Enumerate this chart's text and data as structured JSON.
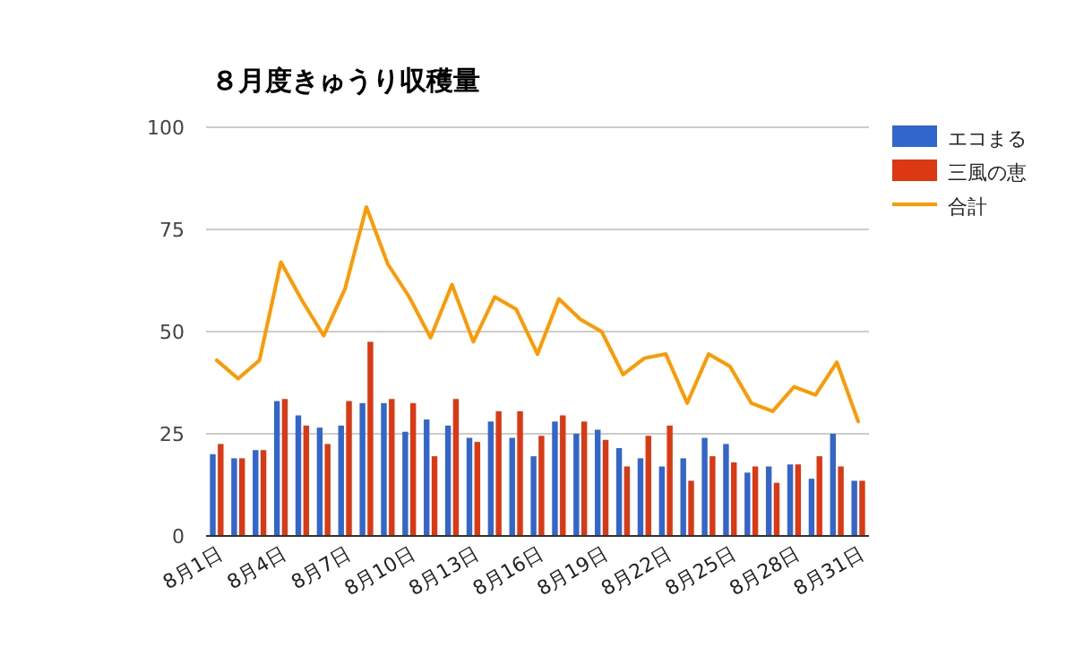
{
  "chart_data": {
    "type": "bar",
    "title": "８月度きゅうり収穫量",
    "categories": [
      "8月1日",
      null,
      null,
      "8月4日",
      null,
      null,
      "8月7日",
      null,
      null,
      "8月10日",
      null,
      null,
      "8月13日",
      null,
      null,
      "8月16日",
      null,
      null,
      "8月19日",
      null,
      null,
      "8月22日",
      null,
      null,
      "8月25日",
      null,
      null,
      "8月28日",
      null,
      null,
      "8月31日"
    ],
    "series": [
      {
        "name": "エコまる",
        "color": "#3366cc",
        "values": [
          20,
          19,
          21,
          33,
          29.5,
          26.5,
          27,
          32.5,
          32.5,
          25.5,
          28.5,
          27,
          24,
          28,
          24,
          19.5,
          28,
          25,
          26,
          21.5,
          19,
          17,
          19,
          24,
          22.5,
          15.5,
          17,
          17.5,
          14,
          25,
          13.5
        ]
      },
      {
        "name": "三風の恵",
        "color": "#dc3912",
        "values": [
          22.5,
          19,
          21,
          33.5,
          27,
          22.5,
          33,
          47.5,
          33.5,
          32.5,
          19.5,
          33.5,
          23,
          30.5,
          30.5,
          24.5,
          29.5,
          28,
          23.5,
          17,
          24.5,
          27,
          13.5,
          19.5,
          18,
          17,
          13,
          17.5,
          19.5,
          17,
          13.5
        ]
      },
      {
        "name": "合計",
        "color": "#ff9900",
        "type": "line",
        "values": [
          43,
          38.5,
          43,
          67,
          57.5,
          49,
          60.5,
          80.5,
          66.5,
          58.5,
          48.5,
          61.5,
          47.5,
          58.5,
          55.5,
          44.5,
          58,
          53,
          50,
          39.5,
          43.5,
          44.5,
          32.5,
          44.5,
          41.5,
          32.5,
          30.5,
          36.5,
          34.5,
          42.5,
          28
        ]
      }
    ],
    "ylim": [
      0,
      100
    ],
    "yticks": [
      0,
      25,
      50,
      75,
      100
    ],
    "grid": "y",
    "legend": "right"
  }
}
